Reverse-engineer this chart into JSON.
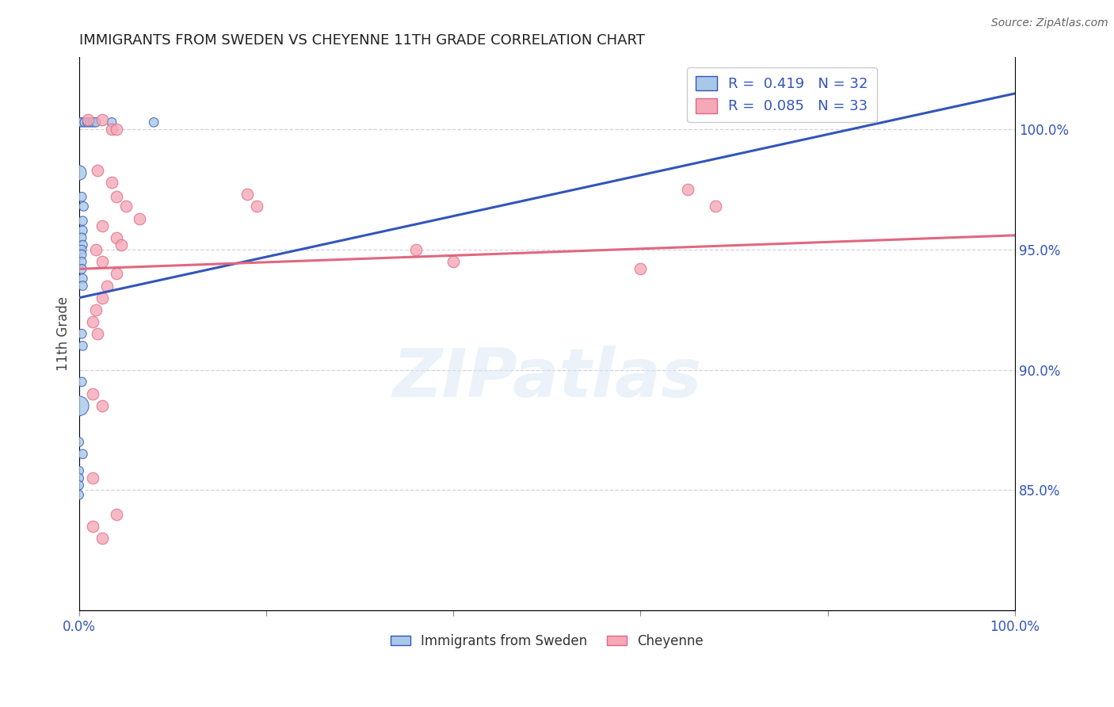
{
  "title": "IMMIGRANTS FROM SWEDEN VS CHEYENNE 11TH GRADE CORRELATION CHART",
  "source": "Source: ZipAtlas.com",
  "ylabel": "11th Grade",
  "xlim": [
    0,
    100
  ],
  "ylim": [
    80,
    103
  ],
  "yticks": [
    85.0,
    90.0,
    95.0,
    100.0
  ],
  "xtick_positions": [
    0,
    20,
    40,
    60,
    80,
    100
  ],
  "xtick_labels": [
    "0.0%",
    "",
    "",
    "",
    "",
    "100.0%"
  ],
  "ytick_labels": [
    "85.0%",
    "90.0%",
    "95.0%",
    "100.0%"
  ],
  "legend_labels": [
    "Immigrants from Sweden",
    "Cheyenne"
  ],
  "R_blue": 0.419,
  "N_blue": 32,
  "R_pink": 0.085,
  "N_pink": 33,
  "blue_color": "#a8c8e8",
  "pink_color": "#f4a8b8",
  "blue_line_color": "#3355bb",
  "pink_line_color": "#e06880",
  "watermark": "ZIPatlas",
  "blue_line": [
    [
      0,
      93.0
    ],
    [
      100,
      101.5
    ]
  ],
  "pink_line": [
    [
      0,
      94.2
    ],
    [
      100,
      95.6
    ]
  ],
  "blue_scatter": [
    [
      0.0,
      100.3
    ],
    [
      0.3,
      100.3
    ],
    [
      0.6,
      100.3
    ],
    [
      0.9,
      100.3
    ],
    [
      1.2,
      100.3
    ],
    [
      1.5,
      100.3
    ],
    [
      1.8,
      100.3
    ],
    [
      3.5,
      100.3
    ],
    [
      8.0,
      100.3
    ],
    [
      0.0,
      98.2
    ],
    [
      0.3,
      97.2
    ],
    [
      0.5,
      96.8
    ],
    [
      0.4,
      96.2
    ],
    [
      0.4,
      95.8
    ],
    [
      0.3,
      95.5
    ],
    [
      0.4,
      95.2
    ],
    [
      0.3,
      95.0
    ],
    [
      0.3,
      94.8
    ],
    [
      0.3,
      94.5
    ],
    [
      0.3,
      94.2
    ],
    [
      0.4,
      93.8
    ],
    [
      0.4,
      93.5
    ],
    [
      0.3,
      91.5
    ],
    [
      0.4,
      91.0
    ],
    [
      0.3,
      89.5
    ],
    [
      0.0,
      88.5
    ],
    [
      0.0,
      87.0
    ],
    [
      0.4,
      86.5
    ],
    [
      0.0,
      85.8
    ],
    [
      0.0,
      85.5
    ],
    [
      0.0,
      85.2
    ],
    [
      0.0,
      84.8
    ]
  ],
  "blue_scatter_sizes": [
    70,
    70,
    70,
    70,
    70,
    70,
    70,
    70,
    70,
    180,
    70,
    70,
    70,
    70,
    70,
    70,
    70,
    70,
    70,
    70,
    70,
    70,
    70,
    70,
    70,
    320,
    70,
    70,
    70,
    70,
    70,
    70
  ],
  "pink_scatter": [
    [
      1.0,
      100.4
    ],
    [
      2.5,
      100.4
    ],
    [
      3.5,
      100.0
    ],
    [
      4.0,
      100.0
    ],
    [
      2.0,
      98.3
    ],
    [
      3.5,
      97.8
    ],
    [
      4.0,
      97.2
    ],
    [
      5.0,
      96.8
    ],
    [
      6.5,
      96.3
    ],
    [
      2.5,
      96.0
    ],
    [
      4.0,
      95.5
    ],
    [
      4.5,
      95.2
    ],
    [
      18.0,
      97.3
    ],
    [
      19.0,
      96.8
    ],
    [
      36.0,
      95.0
    ],
    [
      40.0,
      94.5
    ],
    [
      1.8,
      95.0
    ],
    [
      2.5,
      94.5
    ],
    [
      4.0,
      94.0
    ],
    [
      3.0,
      93.5
    ],
    [
      2.5,
      93.0
    ],
    [
      1.8,
      92.5
    ],
    [
      1.5,
      92.0
    ],
    [
      2.0,
      91.5
    ],
    [
      60.0,
      94.2
    ],
    [
      65.0,
      97.5
    ],
    [
      68.0,
      96.8
    ],
    [
      1.5,
      89.0
    ],
    [
      2.5,
      88.5
    ],
    [
      1.5,
      85.5
    ],
    [
      1.5,
      83.5
    ],
    [
      2.5,
      83.0
    ],
    [
      4.0,
      84.0
    ]
  ]
}
